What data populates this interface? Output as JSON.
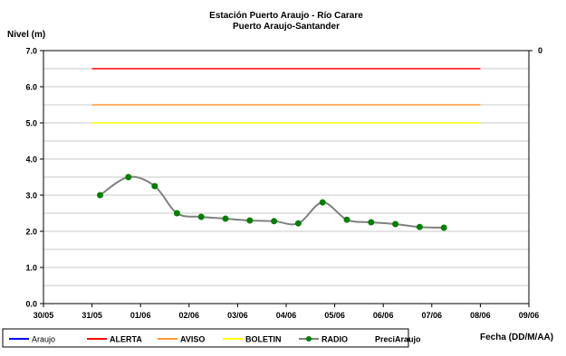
{
  "chart_data": {
    "type": "line",
    "title": "Estación Puerto Araujo - Río Carare",
    "subtitle": "Puerto Araujo-Santander",
    "ylabel": "Nivel (m)",
    "xlabel": "Fecha (DD/M/AA)",
    "ylim": [
      0,
      7
    ],
    "y_ticks": [
      "0.0",
      "1.0",
      "2.0",
      "3.0",
      "4.0",
      "5.0",
      "6.0",
      "7.0"
    ],
    "y2_ticks": [
      "0"
    ],
    "x_range": [
      "2013-05-30",
      "2013-06-09"
    ],
    "x_ticks": [
      "30/05",
      "31/05",
      "01/06",
      "02/06",
      "03/06",
      "04/06",
      "05/06",
      "06/06",
      "07/06",
      "08/06",
      "09/06"
    ],
    "grid": "horizontal",
    "legend_position": "bottom",
    "thresholds": [
      {
        "name": "ALERTA",
        "value": 6.5,
        "color": "#ff0000",
        "x_start": "2013-05-31",
        "x_end": "2013-06-08"
      },
      {
        "name": "AVISO",
        "value": 5.5,
        "color": "#ff9933",
        "x_start": "2013-05-31",
        "x_end": "2013-06-08"
      },
      {
        "name": "BOLETIN",
        "value": 5.0,
        "color": "#ffff00",
        "x_start": "2013-05-31",
        "x_end": "2013-06-08"
      }
    ],
    "series": [
      {
        "name": "RADIO",
        "color": "#808080",
        "marker_color": "#008000",
        "x": [
          "2013-05-31 04:00",
          "2013-05-31 18:00",
          "2013-06-01 07:00",
          "2013-06-01 18:00",
          "2013-06-02 06:00",
          "2013-06-02 18:00",
          "2013-06-03 06:00",
          "2013-06-03 18:00",
          "2013-06-04 06:00",
          "2013-06-04 18:00",
          "2013-06-05 06:00",
          "2013-06-05 18:00",
          "2013-06-06 06:00",
          "2013-06-06 18:00",
          "2013-06-07 06:00"
        ],
        "y": [
          3.0,
          3.5,
          3.25,
          2.5,
          2.4,
          2.35,
          2.3,
          2.28,
          2.22,
          2.8,
          2.32,
          2.25,
          2.2,
          2.12,
          2.1
        ]
      }
    ],
    "legend": [
      {
        "label": "Araujo",
        "color": "#0000ff",
        "kind": "line"
      },
      {
        "label": "ALERTA",
        "color": "#ff0000",
        "kind": "line"
      },
      {
        "label": "AVISO",
        "color": "#ff9933",
        "kind": "line"
      },
      {
        "label": "BOLETIN",
        "color": "#ffff00",
        "kind": "line"
      },
      {
        "label": "RADIO",
        "color": "#808080",
        "kind": "line-marker",
        "marker_color": "#008000"
      },
      {
        "label": "PreciAraujo",
        "color": "",
        "kind": "none"
      }
    ]
  }
}
